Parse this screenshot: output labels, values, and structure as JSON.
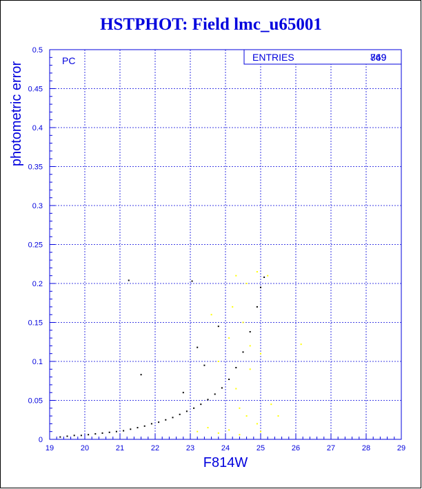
{
  "chart_data": {
    "type": "scatter",
    "title": "HSTPHOT: Field lmc_u65001",
    "xlabel": "F814W",
    "ylabel": "photometric error",
    "xlim": [
      19,
      29
    ],
    "ylim": [
      0,
      0.5
    ],
    "x_ticks": [
      "19",
      "20",
      "21",
      "22",
      "23",
      "24",
      "25",
      "26",
      "27",
      "28",
      "29"
    ],
    "y_ticks": [
      "0",
      "0.05",
      "0.1",
      "0.15",
      "0.2",
      "0.25",
      "0.3",
      "0.35",
      "0.4",
      "0.45",
      "0.5"
    ],
    "grid": true,
    "annotation": "PC",
    "stats_label": "ENTRIES",
    "stats_values": [
      "769",
      "849"
    ],
    "series": [
      {
        "color": "#000000",
        "points": [
          [
            19.3,
            0.003
          ],
          [
            19.5,
            0.004
          ],
          [
            19.7,
            0.005
          ],
          [
            19.9,
            0.005
          ],
          [
            20.1,
            0.006
          ],
          [
            20.3,
            0.007
          ],
          [
            20.5,
            0.008
          ],
          [
            20.7,
            0.009
          ],
          [
            20.9,
            0.01
          ],
          [
            21.1,
            0.011
          ],
          [
            21.3,
            0.013
          ],
          [
            21.5,
            0.015
          ],
          [
            21.7,
            0.017
          ],
          [
            21.9,
            0.02
          ],
          [
            22.1,
            0.022
          ],
          [
            22.3,
            0.025
          ],
          [
            22.5,
            0.028
          ],
          [
            22.7,
            0.032
          ],
          [
            22.9,
            0.036
          ],
          [
            23.1,
            0.04
          ],
          [
            23.3,
            0.045
          ],
          [
            23.5,
            0.051
          ],
          [
            23.7,
            0.058
          ],
          [
            23.9,
            0.066
          ],
          [
            24.1,
            0.077
          ],
          [
            24.3,
            0.092
          ],
          [
            24.5,
            0.112
          ],
          [
            24.7,
            0.138
          ],
          [
            24.9,
            0.17
          ],
          [
            25.0,
            0.195
          ],
          [
            25.1,
            0.208
          ],
          [
            21.25,
            0.204
          ],
          [
            23.05,
            0.203
          ],
          [
            21.6,
            0.083
          ],
          [
            23.8,
            0.145
          ],
          [
            23.2,
            0.118
          ],
          [
            22.8,
            0.06
          ],
          [
            23.4,
            0.095
          ]
        ]
      },
      {
        "color": "#ffff00",
        "points": [
          [
            24.3,
            0.21
          ],
          [
            24.6,
            0.2
          ],
          [
            24.9,
            0.215
          ],
          [
            25.2,
            0.21
          ],
          [
            24.2,
            0.17
          ],
          [
            24.5,
            0.15
          ],
          [
            24.1,
            0.13
          ],
          [
            24.7,
            0.12
          ],
          [
            25.0,
            0.11
          ],
          [
            26.15,
            0.122
          ],
          [
            23.6,
            0.16
          ],
          [
            23.8,
            0.1
          ],
          [
            24.4,
            0.04
          ],
          [
            24.6,
            0.03
          ],
          [
            24.9,
            0.02
          ],
          [
            25.3,
            0.045
          ],
          [
            25.5,
            0.03
          ],
          [
            23.2,
            0.01
          ],
          [
            23.5,
            0.015
          ],
          [
            23.8,
            0.008
          ],
          [
            24.1,
            0.012
          ],
          [
            24.4,
            0.006
          ],
          [
            25.0,
            0.01
          ],
          [
            24.7,
            0.09
          ],
          [
            24.3,
            0.065
          ]
        ]
      }
    ]
  }
}
